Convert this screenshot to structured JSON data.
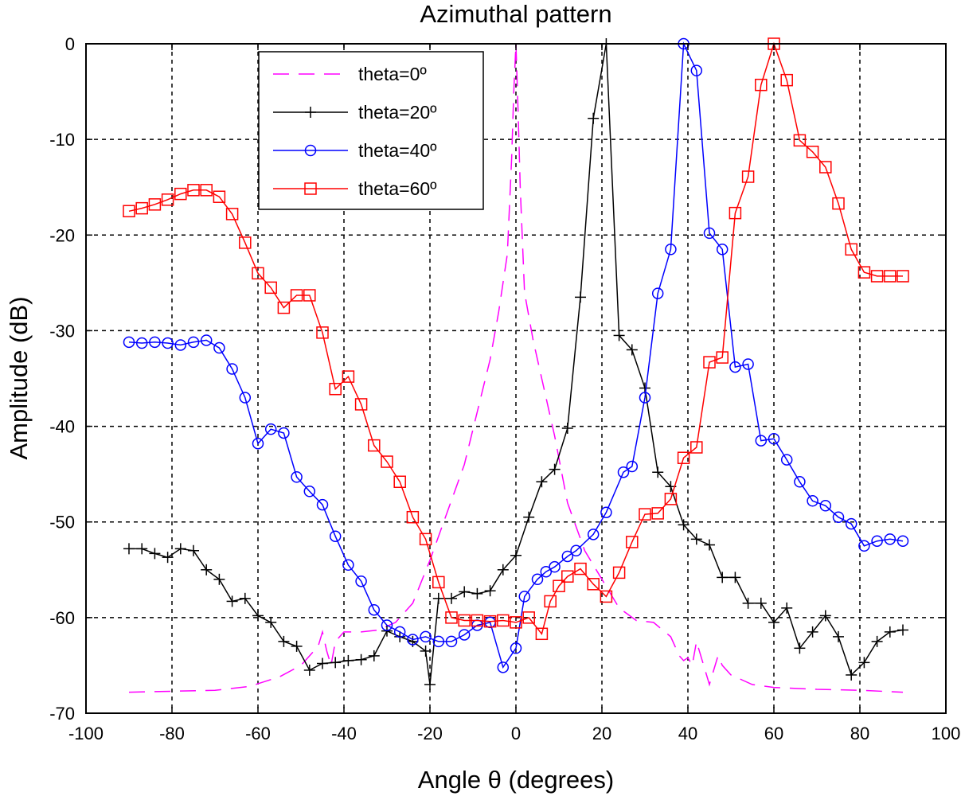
{
  "chart_data": {
    "type": "line",
    "title": "Azimuthal pattern",
    "xlabel": "Angle θ (degrees)",
    "ylabel": "Amplitude (dB)",
    "xlim": [
      -100,
      100
    ],
    "ylim": [
      -70,
      0
    ],
    "xticks": [
      -100,
      -80,
      -60,
      -40,
      -20,
      0,
      20,
      40,
      60,
      80,
      100
    ],
    "yticks": [
      0,
      -10,
      -20,
      -30,
      -40,
      -50,
      -60,
      -70
    ],
    "grid": true,
    "legend_position": "top-left-center",
    "series": [
      {
        "name": "theta=0º",
        "color": "#ff00ff",
        "linestyle": "dashed",
        "marker": "none",
        "x": [
          -90,
          -80,
          -70,
          -62,
          -55,
          -50,
          -46,
          -45,
          -44,
          -43,
          -42,
          -40,
          -36,
          -32,
          -28,
          -24,
          -20,
          -16,
          -12,
          -9,
          -6,
          -4,
          -2,
          -1,
          -0.5,
          0,
          0.5,
          1,
          2,
          4,
          6,
          9,
          12,
          16,
          20,
          24,
          28,
          32,
          36,
          38,
          39,
          40,
          41,
          42,
          44,
          45,
          46,
          47,
          48,
          50,
          55,
          60,
          70,
          80,
          90
        ],
        "y": [
          -67.8,
          -67.7,
          -67.6,
          -67.2,
          -66.2,
          -65,
          -63,
          -61.5,
          -63.5,
          -65,
          -62.5,
          -61.5,
          -61.5,
          -61.3,
          -60.5,
          -58.5,
          -54,
          -49,
          -44,
          -38.5,
          -33,
          -28,
          -22,
          -12,
          -5,
          0,
          -7,
          -15,
          -26,
          -31,
          -35,
          -41,
          -48,
          -53,
          -56,
          -59,
          -60.3,
          -60.5,
          -62,
          -64,
          -64.5,
          -64.2,
          -65,
          -62.5,
          -65.5,
          -67,
          -65.5,
          -64,
          -65,
          -66,
          -67,
          -67.3,
          -67.5,
          -67.6,
          -67.8
        ]
      },
      {
        "name": "theta=20º",
        "color": "#000000",
        "linestyle": "solid",
        "marker": "+",
        "x": [
          -90,
          -87,
          -84,
          -81,
          -78,
          -75,
          -72,
          -69,
          -66,
          -63,
          -60,
          -57,
          -54,
          -51,
          -48,
          -45,
          -42,
          -39,
          -36,
          -33,
          -30,
          -27,
          -24,
          -21,
          -20,
          -18,
          -15,
          -12,
          -9,
          -6,
          -3,
          0,
          3,
          6,
          9,
          12,
          15,
          18,
          21,
          24,
          27,
          30,
          33,
          36,
          39,
          42,
          45,
          48,
          51,
          54,
          57,
          60,
          63,
          66,
          69,
          72,
          75,
          78,
          81,
          84,
          87,
          90
        ],
        "y": [
          -52.8,
          -52.8,
          -53.3,
          -53.7,
          -52.8,
          -53,
          -55,
          -56,
          -58.3,
          -58,
          -59.8,
          -60.5,
          -62.5,
          -63,
          -65.5,
          -64.8,
          -64.7,
          -64.5,
          -64.4,
          -64,
          -61.4,
          -62,
          -62.5,
          -63.5,
          -67,
          -58,
          -58,
          -57.3,
          -57.5,
          -57.2,
          -55,
          -53.5,
          -49.5,
          -45.8,
          -44.5,
          -40.2,
          -26.5,
          -7.8,
          0,
          -30.5,
          -32,
          -36,
          -44.8,
          -46.3,
          -50.3,
          -51.8,
          -52.4,
          -55.8,
          -55.8,
          -58.5,
          -58.5,
          -60.5,
          -59,
          -63.2,
          -61.5,
          -59.8,
          -62,
          -66,
          -64.7,
          -62.5,
          -61.5,
          -61.3
        ]
      },
      {
        "name": "theta=40º",
        "color": "#0000ff",
        "linestyle": "solid",
        "marker": "o",
        "x": [
          -90,
          -87,
          -84,
          -81,
          -78,
          -75,
          -72,
          -69,
          -66,
          -63,
          -60,
          -57,
          -54,
          -51,
          -48,
          -45,
          -42,
          -39,
          -36,
          -33,
          -30,
          -27,
          -24,
          -21,
          -18,
          -15,
          -12,
          -9,
          -6,
          -3,
          0,
          2,
          5,
          7,
          9,
          12,
          14,
          18,
          21,
          25,
          27,
          30,
          33,
          36,
          39,
          42,
          45,
          48,
          51,
          54,
          57,
          60,
          63,
          66,
          69,
          72,
          75,
          78,
          81,
          84,
          87,
          90
        ],
        "y": [
          -31.2,
          -31.3,
          -31.2,
          -31.3,
          -31.5,
          -31.2,
          -31,
          -31.8,
          -34,
          -37,
          -41.8,
          -40.3,
          -40.7,
          -45.3,
          -46.8,
          -48.2,
          -51.5,
          -54.5,
          -56.2,
          -59.2,
          -60.8,
          -61.5,
          -62.3,
          -62,
          -62.5,
          -62.5,
          -61.8,
          -60.8,
          -60.5,
          -65.2,
          -63.2,
          -57.8,
          -56,
          -55.2,
          -54.7,
          -53.6,
          -53,
          -51.3,
          -49,
          -44.8,
          -44.2,
          -37,
          -26.1,
          -21.5,
          0,
          -2.8,
          -19.8,
          -21.5,
          -33.8,
          -33.5,
          -41.5,
          -41.3,
          -43.5,
          -45.8,
          -47.8,
          -48.3,
          -49.5,
          -50.2,
          -52.5,
          -52,
          -51.8,
          -52
        ]
      },
      {
        "name": "theta=60º",
        "color": "#ff0000",
        "linestyle": "solid",
        "marker": "s",
        "x": [
          -90,
          -87,
          -84,
          -81,
          -78,
          -75,
          -72,
          -69,
          -66,
          -63,
          -60,
          -57,
          -54,
          -51,
          -48,
          -45,
          -42,
          -39,
          -36,
          -33,
          -30,
          -27,
          -24,
          -21,
          -18,
          -15,
          -12,
          -9,
          -6,
          -3,
          0,
          3,
          6,
          8,
          10,
          12,
          15,
          18,
          21,
          24,
          27,
          30,
          33,
          36,
          39,
          42,
          45,
          48,
          51,
          54,
          57,
          60,
          63,
          66,
          69,
          72,
          75,
          78,
          81,
          84,
          87,
          90
        ],
        "y": [
          -17.5,
          -17.2,
          -16.8,
          -16.3,
          -15.7,
          -15.3,
          -15.3,
          -16,
          -17.8,
          -20.8,
          -24,
          -25.5,
          -27.6,
          -26.3,
          -26.3,
          -30.2,
          -36.1,
          -34.8,
          -37.7,
          -42,
          -43.7,
          -45.8,
          -49.5,
          -51.8,
          -56.3,
          -60,
          -60.3,
          -60.3,
          -60.4,
          -60.3,
          -60.5,
          -60,
          -61.7,
          -58.3,
          -56.7,
          -55.7,
          -54.9,
          -56.5,
          -57.8,
          -55.3,
          -52.1,
          -49.2,
          -49.1,
          -47.6,
          -43.3,
          -42.2,
          -33.3,
          -32.8,
          -17.7,
          -13.9,
          -4.3,
          0,
          -3.8,
          -10.1,
          -11.3,
          -12.9,
          -16.7,
          -21.5,
          -23.9,
          -24.3,
          -24.3,
          -24.3
        ]
      }
    ]
  }
}
